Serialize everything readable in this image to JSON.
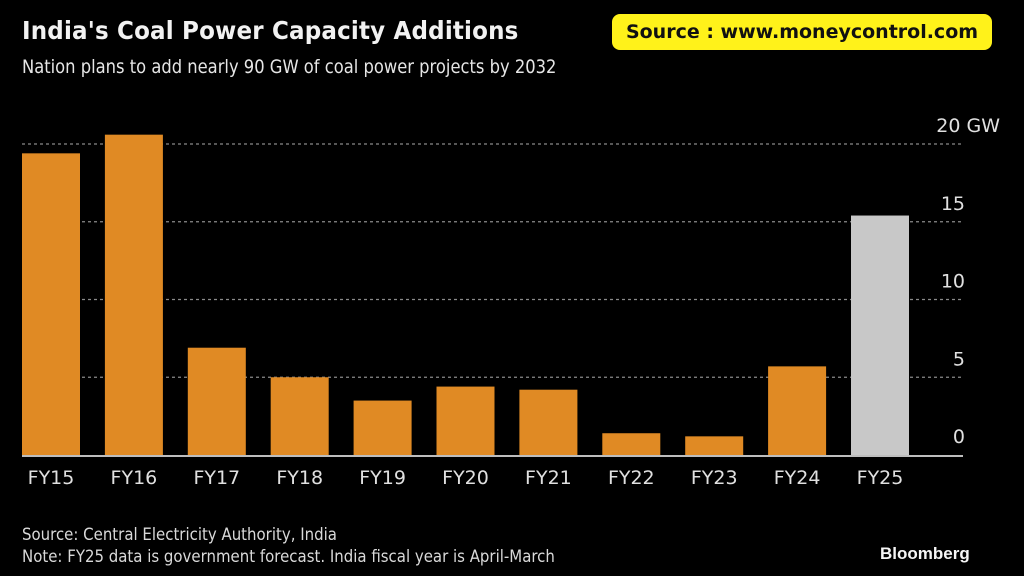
{
  "header": {
    "title": "India's Coal Power Capacity Additions",
    "subtitle": "Nation plans to add nearly 90 GW of coal power projects by 2032",
    "source_badge": "Source : www.moneycontrol.com"
  },
  "footer": {
    "source": "Source: Central Electricity Authority, India",
    "note": "Note: FY25 data is government forecast. India fiscal year is April-March",
    "brand": "Bloomberg"
  },
  "colors": {
    "actual": "#e08a24",
    "forecast": "#c8c8c8",
    "badge": "#fff21a",
    "grid": "#8a8a8a",
    "axis": "#bdbdbd"
  },
  "chart_data": {
    "type": "bar",
    "title": "India's Coal Power Capacity Additions",
    "subtitle": "Nation plans to add nearly 90 GW of coal power projects by 2032",
    "xlabel": "",
    "ylabel": "GW",
    "categories": [
      "FY15",
      "FY16",
      "FY17",
      "FY18",
      "FY19",
      "FY20",
      "FY21",
      "FY22",
      "FY23",
      "FY24",
      "FY25"
    ],
    "values": [
      19.4,
      20.6,
      6.9,
      5.0,
      3.5,
      4.4,
      4.2,
      1.4,
      1.2,
      5.7,
      15.4
    ],
    "forecast": [
      false,
      false,
      false,
      false,
      false,
      false,
      false,
      false,
      false,
      false,
      true
    ],
    "ylim": [
      0,
      20
    ],
    "yticks": [
      0,
      5,
      10,
      15,
      20
    ],
    "ytick_labels": [
      "0",
      "5",
      "10",
      "15",
      "20 GW"
    ],
    "y_axis_position": "right",
    "grid": true,
    "legend": "none"
  }
}
